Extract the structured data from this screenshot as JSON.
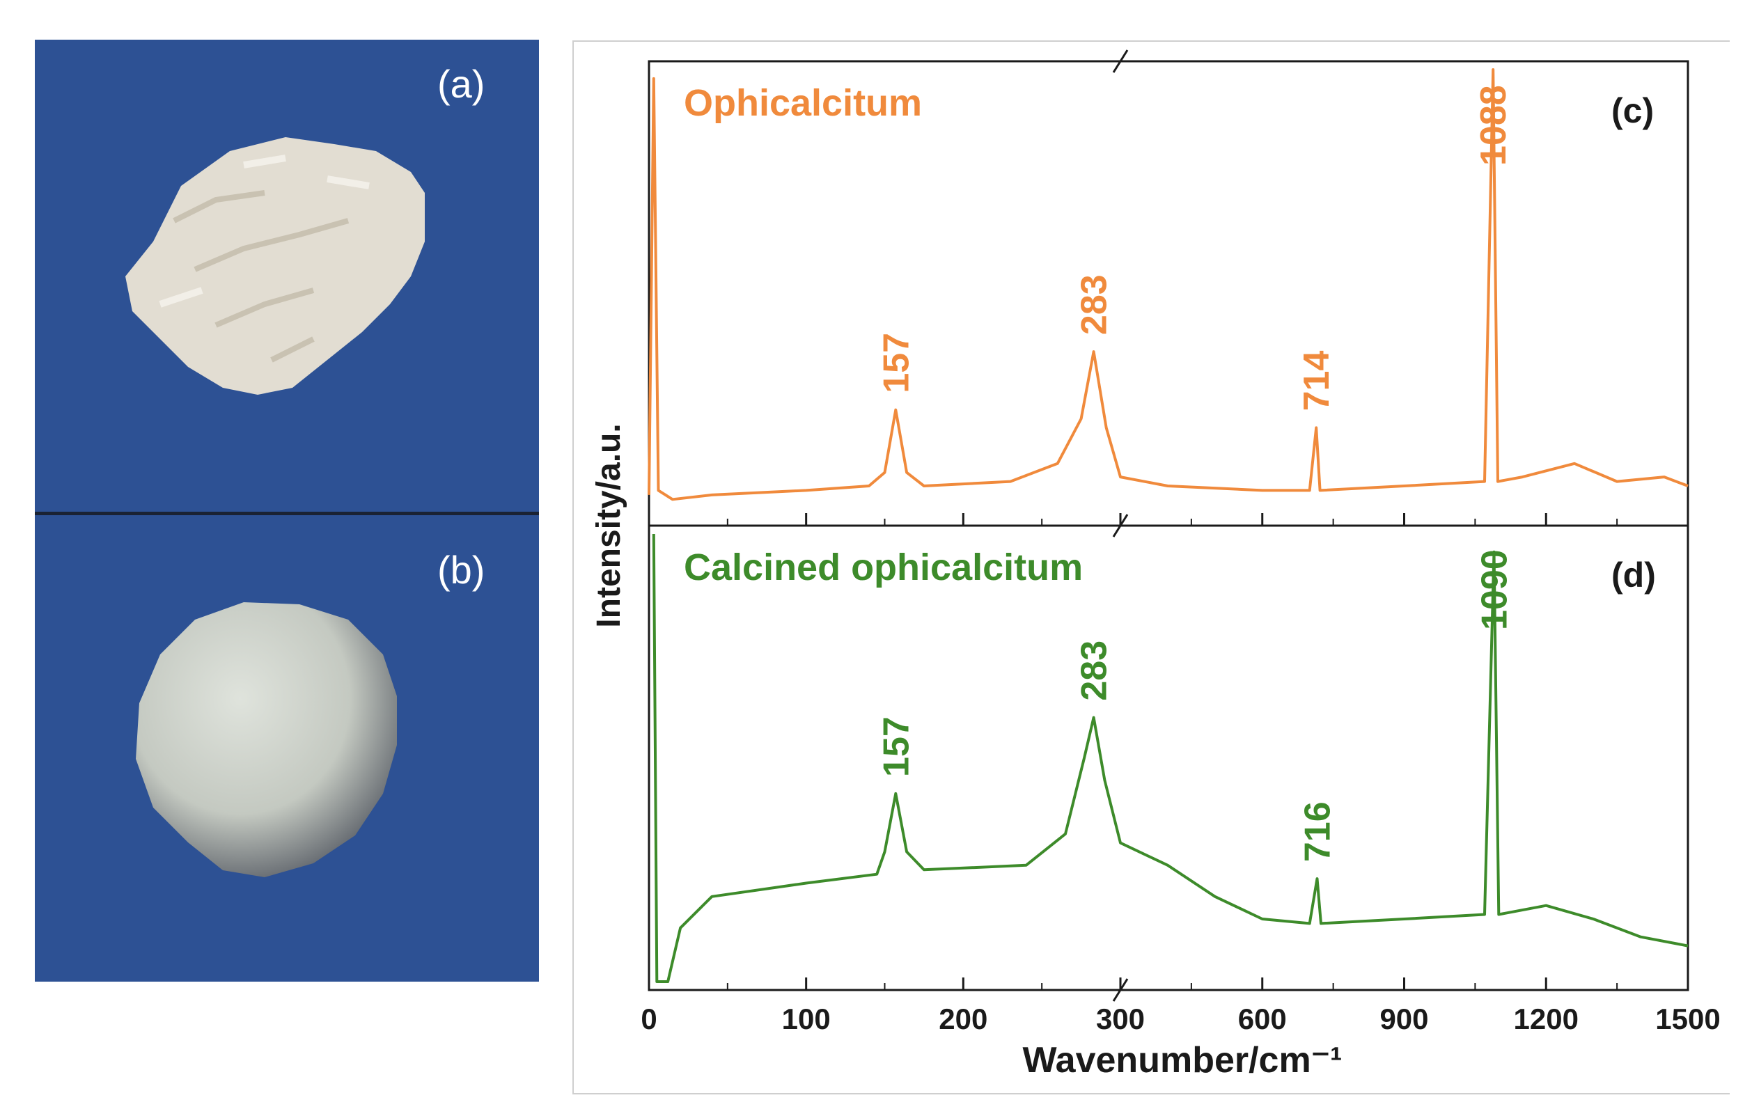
{
  "panels": {
    "a_label": "(a)",
    "b_label": "(b)"
  },
  "colors": {
    "photo_background": "#2d5194",
    "series_c": "#f08a3c",
    "series_d": "#3d8b2a"
  },
  "chart_data": {
    "type": "line",
    "title": "",
    "xlabel": "Wavenumber/cm⁻¹",
    "ylabel": "Intensity/a.u.",
    "x_axis": {
      "broken": true,
      "break_at": 300,
      "segments": [
        {
          "range": [
            0,
            300
          ],
          "ticks": [
            0,
            100,
            200,
            300
          ]
        },
        {
          "range": [
            300,
            1500
          ],
          "ticks": [
            300,
            600,
            900,
            1200,
            1500
          ]
        }
      ],
      "tick_labels": [
        "0",
        "100",
        "200",
        "300",
        "600",
        "900",
        "1200",
        "1500"
      ]
    },
    "grid": false,
    "series": [
      {
        "name": "Ophicalcitum",
        "panel_label": "(c)",
        "color": "#f08a3c",
        "baseline": 0.08,
        "points": [
          [
            0,
            0.05
          ],
          [
            3,
            0.98
          ],
          [
            6,
            0.06
          ],
          [
            15,
            0.04
          ],
          [
            40,
            0.05
          ],
          [
            100,
            0.06
          ],
          [
            140,
            0.07
          ],
          [
            150,
            0.1
          ],
          [
            157,
            0.24
          ],
          [
            164,
            0.1
          ],
          [
            175,
            0.07
          ],
          [
            230,
            0.08
          ],
          [
            260,
            0.12
          ],
          [
            275,
            0.22
          ],
          [
            283,
            0.37
          ],
          [
            291,
            0.2
          ],
          [
            300,
            0.09
          ],
          [
            400,
            0.07
          ],
          [
            600,
            0.06
          ],
          [
            700,
            0.06
          ],
          [
            714,
            0.2
          ],
          [
            722,
            0.06
          ],
          [
            900,
            0.07
          ],
          [
            1070,
            0.08
          ],
          [
            1088,
            1.0
          ],
          [
            1098,
            0.08
          ],
          [
            1150,
            0.09
          ],
          [
            1260,
            0.12
          ],
          [
            1350,
            0.08
          ],
          [
            1450,
            0.09
          ],
          [
            1500,
            0.07
          ]
        ],
        "peaks": [
          {
            "x": 157,
            "label": "157"
          },
          {
            "x": 283,
            "label": "283"
          },
          {
            "x": 714,
            "label": "714"
          },
          {
            "x": 1088,
            "label": "1088"
          }
        ]
      },
      {
        "name": "Calcined ophicalcitum",
        "panel_label": "(d)",
        "color": "#3d8b2a",
        "points": [
          [
            3,
            1.0
          ],
          [
            5,
            0.0
          ],
          [
            12,
            0.0
          ],
          [
            20,
            0.12
          ],
          [
            40,
            0.19
          ],
          [
            100,
            0.22
          ],
          [
            145,
            0.24
          ],
          [
            150,
            0.29
          ],
          [
            157,
            0.42
          ],
          [
            164,
            0.29
          ],
          [
            175,
            0.25
          ],
          [
            240,
            0.26
          ],
          [
            265,
            0.33
          ],
          [
            277,
            0.5
          ],
          [
            283,
            0.59
          ],
          [
            290,
            0.45
          ],
          [
            300,
            0.31
          ],
          [
            400,
            0.26
          ],
          [
            500,
            0.19
          ],
          [
            600,
            0.14
          ],
          [
            700,
            0.13
          ],
          [
            716,
            0.23
          ],
          [
            724,
            0.13
          ],
          [
            900,
            0.14
          ],
          [
            1070,
            0.15
          ],
          [
            1090,
            0.96
          ],
          [
            1100,
            0.15
          ],
          [
            1200,
            0.17
          ],
          [
            1300,
            0.14
          ],
          [
            1400,
            0.1
          ],
          [
            1500,
            0.08
          ]
        ],
        "peaks": [
          {
            "x": 157,
            "label": "157"
          },
          {
            "x": 283,
            "label": "283"
          },
          {
            "x": 716,
            "label": "716"
          },
          {
            "x": 1090,
            "label": "1090"
          }
        ]
      }
    ]
  }
}
